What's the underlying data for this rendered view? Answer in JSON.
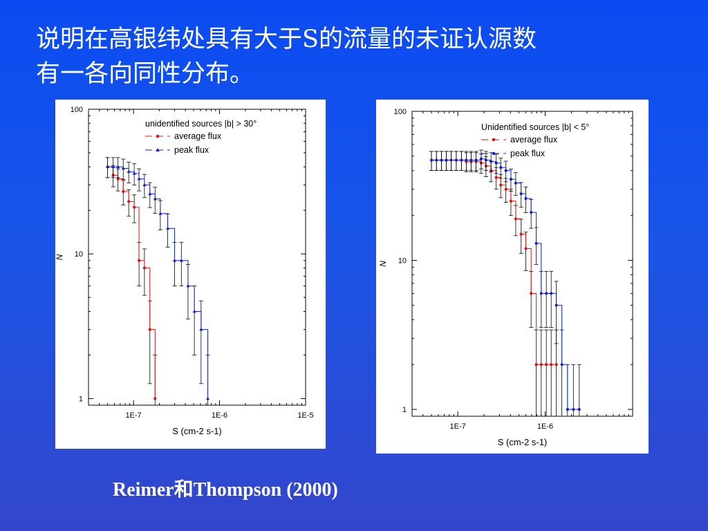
{
  "title": {
    "line1": "说明在高银纬处具有大于S的流量的未证认源数",
    "line2": "有一各向同性分布。"
  },
  "caption": "Reimer和Thompson (2000)",
  "colors": {
    "average": "#e01010",
    "peak": "#1020d0",
    "error": "#000000"
  },
  "chart_data": [
    {
      "type": "line",
      "step": true,
      "log_x": true,
      "log_y": true,
      "xlabel": "S (cm-2 s-1)",
      "ylabel": "N",
      "xlim": [
        3e-08,
        1e-05
      ],
      "ylim": [
        0.9,
        100
      ],
      "x_ticks": [
        {
          "value": 1e-07,
          "label": "1E-7"
        },
        {
          "value": 1e-06,
          "label": "1E-6"
        },
        {
          "value": 1e-05,
          "label": "1E-5"
        }
      ],
      "y_ticks": [
        {
          "value": 1,
          "label": "1"
        },
        {
          "value": 10,
          "label": "10"
        },
        {
          "value": 100,
          "label": "100"
        }
      ],
      "legend_title": "unidentified sources |b| > 30°",
      "legend_position": "top-right",
      "series": [
        {
          "name": "average flux",
          "marker": "circle",
          "x": [
            5e-08,
            5.8e-08,
            6.6e-08,
            7.6e-08,
            8.8e-08,
            1.02e-07,
            1.16e-07,
            1.34e-07,
            1.55e-07,
            1.78e-07
          ],
          "y": [
            40,
            35,
            33,
            27,
            23,
            21,
            9,
            8,
            3,
            1
          ]
        },
        {
          "name": "peak flux",
          "marker": "triangle",
          "x": [
            5e-08,
            5.8e-08,
            6.6e-08,
            7.6e-08,
            8.8e-08,
            1.02e-07,
            1.16e-07,
            1.34e-07,
            1.55e-07,
            1.78e-07,
            2.05e-07,
            2.5e-07,
            3e-07,
            3.6e-07,
            4.3e-07,
            5.1e-07,
            6.1e-07,
            7.3e-07
          ],
          "y": [
            40,
            40,
            40,
            39,
            37,
            36,
            33,
            30,
            26,
            24,
            19,
            15,
            9,
            9,
            6,
            4,
            3,
            1
          ]
        }
      ]
    },
    {
      "type": "line",
      "step": true,
      "log_x": true,
      "log_y": true,
      "xlabel": "S (cm-2 s-1)",
      "ylabel": "N",
      "xlim": [
        3e-08,
        1e-05
      ],
      "ylim": [
        0.9,
        100
      ],
      "x_ticks": [
        {
          "value": 1e-07,
          "label": "1E-7"
        },
        {
          "value": 1e-06,
          "label": "1E-6"
        }
      ],
      "y_ticks": [
        {
          "value": 1,
          "label": "1"
        },
        {
          "value": 10,
          "label": "10"
        },
        {
          "value": 100,
          "label": "100"
        }
      ],
      "legend_title": "Unidentified sources |b| < 5°",
      "legend_position": "top-right",
      "series": [
        {
          "name": "average flux",
          "marker": "circle",
          "x": [
            5e-08,
            5.7e-08,
            6.5e-08,
            7.4e-08,
            8.4e-08,
            9.6e-08,
            1.1e-07,
            1.25e-07,
            1.42e-07,
            1.62e-07,
            1.85e-07,
            2.1e-07,
            2.4e-07,
            2.75e-07,
            3.1e-07,
            3.55e-07,
            4.05e-07,
            4.6e-07,
            5.3e-07,
            6e-07,
            6.9e-07,
            7.9e-07,
            9e-07,
            1.03e-06,
            1.17e-06,
            1.34e-06
          ],
          "y": [
            47,
            47,
            47,
            47,
            47,
            47,
            47,
            46,
            46,
            46,
            45,
            43,
            40,
            36,
            32,
            30,
            25,
            19,
            15,
            12,
            6,
            2,
            2,
            2,
            2,
            2
          ]
        },
        {
          "name": "peak flux",
          "marker": "circle",
          "x": [
            5e-08,
            5.7e-08,
            6.5e-08,
            7.4e-08,
            8.4e-08,
            9.6e-08,
            1.1e-07,
            1.25e-07,
            1.42e-07,
            1.62e-07,
            1.85e-07,
            2.1e-07,
            2.4e-07,
            2.75e-07,
            3.1e-07,
            3.55e-07,
            4.05e-07,
            4.6e-07,
            5.3e-07,
            6e-07,
            6.9e-07,
            7.9e-07,
            9e-07,
            1.03e-06,
            1.17e-06,
            1.34e-06,
            1.55e-06,
            1.8e-06,
            2.1e-06,
            2.45e-06
          ],
          "y": [
            47,
            47,
            47,
            47,
            47,
            47,
            47,
            47,
            47,
            47,
            48,
            47,
            46,
            45,
            42,
            40,
            35,
            33,
            28,
            26,
            21,
            13,
            6,
            6,
            6,
            5,
            2,
            1,
            1,
            1
          ]
        }
      ]
    }
  ]
}
